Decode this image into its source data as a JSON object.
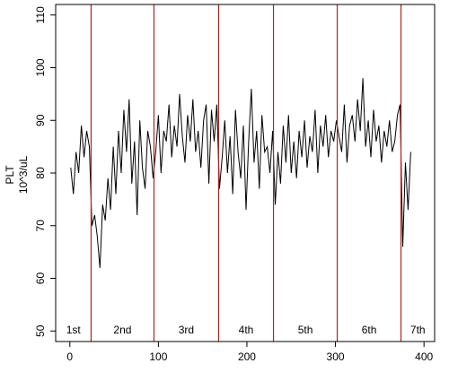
{
  "chart_data": {
    "type": "line",
    "ylabel": [
      "PLT",
      "10^3/uL"
    ],
    "x": [
      1,
      4,
      7,
      10,
      13,
      16,
      19,
      22,
      25,
      28,
      31,
      34,
      37,
      40,
      43,
      46,
      49,
      52,
      55,
      58,
      61,
      64,
      67,
      70,
      73,
      76,
      79,
      82,
      85,
      88,
      91,
      94,
      97,
      100,
      103,
      106,
      109,
      112,
      115,
      118,
      121,
      124,
      127,
      130,
      133,
      136,
      139,
      142,
      145,
      148,
      151,
      154,
      157,
      160,
      163,
      166,
      169,
      172,
      175,
      178,
      181,
      184,
      187,
      190,
      193,
      196,
      199,
      202,
      205,
      208,
      211,
      214,
      217,
      220,
      223,
      226,
      229,
      232,
      235,
      238,
      241,
      244,
      247,
      250,
      253,
      256,
      259,
      262,
      265,
      268,
      271,
      274,
      277,
      280,
      283,
      286,
      289,
      292,
      295,
      298,
      301,
      304,
      307,
      310,
      313,
      316,
      319,
      322,
      325,
      328,
      331,
      334,
      337,
      340,
      343,
      346,
      349,
      352,
      355,
      358,
      361,
      364,
      367,
      370,
      373,
      376,
      379,
      382,
      385
    ],
    "values": [
      81,
      76,
      84,
      80,
      89,
      83,
      88,
      85,
      70,
      72,
      68,
      62,
      74,
      71,
      79,
      73,
      85,
      76,
      88,
      80,
      92,
      84,
      94,
      78,
      86,
      72,
      90,
      81,
      77,
      88,
      85,
      79,
      84,
      91,
      80,
      88,
      86,
      93,
      83,
      89,
      85,
      95,
      87,
      82,
      91,
      86,
      94,
      84,
      88,
      81,
      90,
      93,
      78,
      92,
      86,
      93,
      77,
      83,
      90,
      80,
      87,
      76,
      92,
      84,
      79,
      89,
      73,
      86,
      96,
      82,
      88,
      77,
      91,
      84,
      85,
      80,
      88,
      74,
      84,
      78,
      89,
      82,
      91,
      80,
      86,
      79,
      88,
      83,
      90,
      81,
      87,
      84,
      92,
      80,
      89,
      85,
      91,
      83,
      88,
      86,
      90,
      87,
      84,
      93,
      82,
      89,
      91,
      86,
      94,
      88,
      98,
      85,
      90,
      83,
      92,
      86,
      89,
      82,
      88,
      85,
      90,
      84,
      86,
      91,
      93,
      66,
      82,
      73,
      84
    ],
    "color": "#000000",
    "boundaries": [
      24,
      95,
      168,
      230,
      302,
      374
    ],
    "boundary_color": "#b22222",
    "segments": [
      "1st",
      "2nd",
      "3rd",
      "4th",
      "5th",
      "6th",
      "7th"
    ],
    "xlim": [
      -16,
      412
    ],
    "ylim": [
      48,
      112
    ],
    "xticks": [
      0,
      100,
      200,
      300,
      400
    ],
    "yticks": [
      50,
      60,
      70,
      80,
      90,
      100,
      110
    ]
  }
}
